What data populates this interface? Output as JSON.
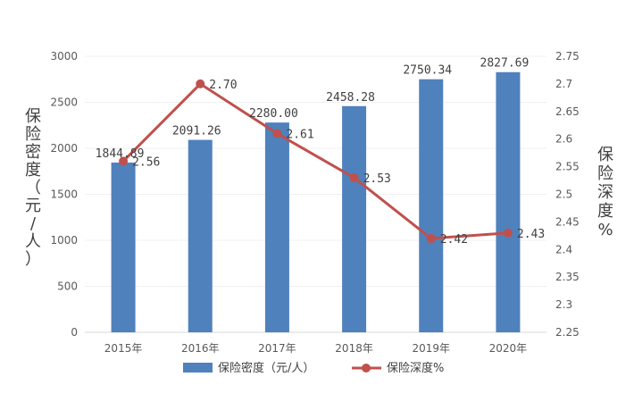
{
  "chart_data": {
    "type": "bar+line",
    "categories": [
      "2015年",
      "2016年",
      "2017年",
      "2018年",
      "2019年",
      "2020年"
    ],
    "series": [
      {
        "name": "保险密度（元/人）",
        "type": "bar",
        "axis": "left",
        "values": [
          1844.89,
          2091.26,
          2280.0,
          2458.28,
          2750.34,
          2827.69
        ],
        "labels": [
          "1844.89",
          "2091.26",
          "2280.00",
          "2458.28",
          "2750.34",
          "2827.69"
        ],
        "color": "#4f81bd"
      },
      {
        "name": "保险深度%",
        "type": "line",
        "axis": "right",
        "values": [
          2.56,
          2.7,
          2.61,
          2.53,
          2.42,
          2.43
        ],
        "labels": [
          "2.56",
          "2.70",
          "2.61",
          "2.53",
          "2.42",
          "2.43"
        ],
        "color": "#c0504d"
      }
    ],
    "y_left": {
      "label_chars": [
        "保",
        "险",
        "密",
        "度",
        "（",
        "元",
        "/",
        "人",
        "）"
      ],
      "ylim": [
        0,
        3000
      ],
      "ticks": [
        "0",
        "500",
        "1000",
        "1500",
        "2000",
        "2500",
        "3000"
      ]
    },
    "y_right": {
      "label_chars": [
        "保",
        "险",
        "深",
        "度",
        "%"
      ],
      "ylim": [
        2.25,
        2.75
      ],
      "ticks": [
        "2.25",
        "2.3",
        "2.35",
        "2.4",
        "2.45",
        "2.5",
        "2.55",
        "2.6",
        "2.65",
        "2.7",
        "2.75"
      ]
    },
    "grid": true,
    "legend_position": "bottom"
  }
}
